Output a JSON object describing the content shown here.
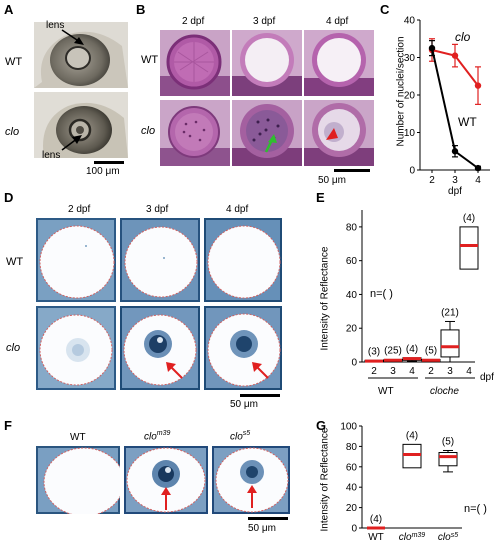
{
  "panels": {
    "A": {
      "label": "A",
      "row_labels": [
        "WT",
        "clo"
      ],
      "annotations": [
        "lens",
        "lens"
      ],
      "scale_bar": "100 μm"
    },
    "B": {
      "label": "B",
      "col_labels": [
        "2 dpf",
        "3 dpf",
        "4 dpf"
      ],
      "row_labels": [
        "WT",
        "clo"
      ],
      "scale_bar": "50 μm"
    },
    "C": {
      "label": "C",
      "ylabel": "Number of nuclei/section",
      "xlabel": "dpf",
      "series_labels": [
        "clo",
        "WT"
      ]
    },
    "D": {
      "label": "D",
      "col_labels": [
        "2 dpf",
        "3 dpf",
        "4 dpf"
      ],
      "row_labels": [
        "WT",
        "clo"
      ],
      "scale_bar": "50 μm"
    },
    "E": {
      "label": "E",
      "ylabel": "Intensity of Reflectance",
      "n_legend": "n=( )",
      "group_labels": [
        "WT",
        "cloche"
      ],
      "x_unit": "dpf"
    },
    "F": {
      "label": "F",
      "col_labels": [
        "WT",
        "clo",
        "m39",
        "clo",
        "s5"
      ],
      "scale_bar": "50 μm"
    },
    "G": {
      "label": "G",
      "ylabel": "Intensity of Reflectance",
      "n_legend": "n=( )"
    }
  },
  "chart_data": [
    {
      "id": "C",
      "type": "line",
      "x": [
        2,
        3,
        4
      ],
      "xticks": [
        "2",
        "3",
        "4"
      ],
      "xlabel": "dpf",
      "ylabel": "Number of nuclei/section",
      "ylim": [
        0,
        40
      ],
      "yticks": [
        0,
        10,
        20,
        30,
        40
      ],
      "series": [
        {
          "name": "clo",
          "color": "#e02020",
          "values": [
            32,
            30.5,
            22.5
          ],
          "err": [
            3,
            3,
            5
          ]
        },
        {
          "name": "WT",
          "color": "#000000",
          "values": [
            32.5,
            5,
            0.5
          ],
          "err": [
            2,
            1.5,
            0.5
          ]
        }
      ]
    },
    {
      "id": "E",
      "type": "box",
      "ylabel": "Intensity of Reflectance",
      "ylim": [
        0,
        90
      ],
      "yticks": [
        0,
        20,
        40,
        60,
        80
      ],
      "groups": [
        "WT",
        "WT",
        "WT",
        "cloche",
        "cloche",
        "cloche"
      ],
      "categories": [
        "2",
        "3",
        "4",
        "2",
        "3",
        "4"
      ],
      "n": [
        "(3)",
        "(25)",
        "(4)",
        "(5)",
        "(21)",
        "(4)"
      ],
      "median": [
        0.5,
        1,
        2,
        1,
        9,
        69
      ],
      "q1": [
        0,
        0,
        1,
        0,
        3,
        55
      ],
      "q3": [
        1,
        1.5,
        2.5,
        1.5,
        19,
        80
      ],
      "whisker_low": [
        0,
        0,
        0.5,
        0,
        0,
        55
      ],
      "whisker_high": [
        1,
        1.5,
        2.5,
        1.5,
        24,
        80
      ],
      "colors": {
        "median": "#e02020"
      }
    },
    {
      "id": "G",
      "type": "box",
      "ylabel": "Intensity of Reflectance",
      "ylim": [
        0,
        100
      ],
      "yticks": [
        0,
        20,
        40,
        60,
        80,
        100
      ],
      "categories": [
        "WT",
        "clo m39",
        "clo s5"
      ],
      "n": [
        "(4)",
        "(4)",
        "(5)"
      ],
      "median": [
        0,
        72,
        70
      ],
      "q1": [
        0,
        59,
        61
      ],
      "q3": [
        0,
        82,
        74
      ],
      "whisker_low": [
        0,
        59,
        55
      ],
      "whisker_high": [
        0,
        82,
        76
      ],
      "colors": {
        "median": "#e02020"
      }
    }
  ]
}
